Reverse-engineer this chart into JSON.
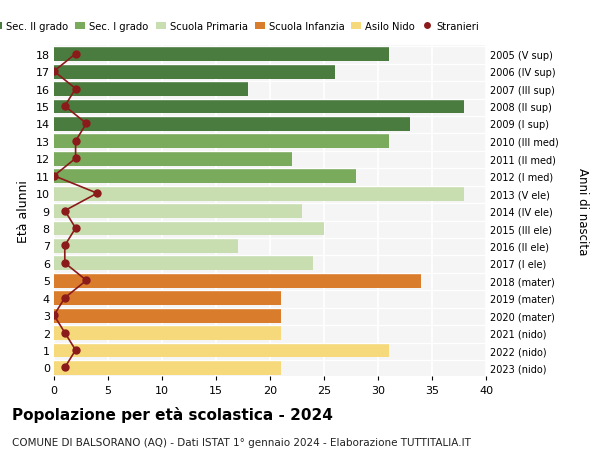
{
  "ages": [
    18,
    17,
    16,
    15,
    14,
    13,
    12,
    11,
    10,
    9,
    8,
    7,
    6,
    5,
    4,
    3,
    2,
    1,
    0
  ],
  "labels_right": [
    "2005 (V sup)",
    "2006 (IV sup)",
    "2007 (III sup)",
    "2008 (II sup)",
    "2009 (I sup)",
    "2010 (III med)",
    "2011 (II med)",
    "2012 (I med)",
    "2013 (V ele)",
    "2014 (IV ele)",
    "2015 (III ele)",
    "2016 (II ele)",
    "2017 (I ele)",
    "2018 (mater)",
    "2019 (mater)",
    "2020 (mater)",
    "2021 (nido)",
    "2022 (nido)",
    "2023 (nido)"
  ],
  "bar_values": [
    31,
    26,
    18,
    38,
    33,
    31,
    22,
    28,
    38,
    23,
    25,
    17,
    24,
    34,
    21,
    21,
    21,
    31,
    21
  ],
  "stranieri": [
    2,
    0,
    2,
    1,
    3,
    2,
    2,
    0,
    4,
    1,
    2,
    1,
    1,
    3,
    1,
    0,
    1,
    2,
    1
  ],
  "bar_colors": [
    "#4a7c3f",
    "#4a7c3f",
    "#4a7c3f",
    "#4a7c3f",
    "#4a7c3f",
    "#7aaa5c",
    "#7aaa5c",
    "#7aaa5c",
    "#c8ddb0",
    "#c8ddb0",
    "#c8ddb0",
    "#c8ddb0",
    "#c8ddb0",
    "#d97c2b",
    "#d97c2b",
    "#d97c2b",
    "#f5d97a",
    "#f5d97a",
    "#f5d97a"
  ],
  "legend_labels": [
    "Sec. II grado",
    "Sec. I grado",
    "Scuola Primaria",
    "Scuola Infanzia",
    "Asilo Nido",
    "Stranieri"
  ],
  "legend_colors": [
    "#4a7c3f",
    "#7aaa5c",
    "#c8ddb0",
    "#d97c2b",
    "#f5d97a",
    "#8b1a1a"
  ],
  "title": "Popolazione per età scolastica - 2024",
  "subtitle": "COMUNE DI BALSORANO (AQ) - Dati ISTAT 1° gennaio 2024 - Elaborazione TUTTITALIA.IT",
  "ylabel": "Età alunni",
  "ylabel_right": "Anni di nascita",
  "xlim": [
    0,
    40
  ],
  "xticks": [
    0,
    5,
    10,
    15,
    20,
    25,
    30,
    35,
    40
  ],
  "background_color": "#f5f5f5",
  "stranieri_color": "#8b1a1a"
}
